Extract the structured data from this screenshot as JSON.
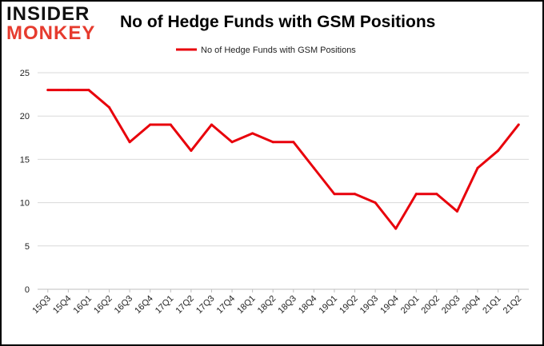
{
  "logo": {
    "line1": "INSIDER",
    "line2": "MONKEY"
  },
  "colors": {
    "series": "#e8000b",
    "grid": "#d9d9d9",
    "logo_accent": "#e63b2e"
  },
  "chart_data": {
    "type": "line",
    "title": "No of Hedge Funds with GSM Positions",
    "legend_position": "top-center",
    "grid": true,
    "ylim": [
      0,
      25
    ],
    "yticks": [
      0,
      5,
      10,
      15,
      20,
      25
    ],
    "x": [
      "15Q3",
      "15Q4",
      "16Q1",
      "16Q2",
      "16Q3",
      "16Q4",
      "17Q1",
      "17Q2",
      "17Q3",
      "17Q4",
      "18Q1",
      "18Q2",
      "18Q3",
      "18Q4",
      "19Q1",
      "19Q2",
      "19Q3",
      "19Q4",
      "20Q1",
      "20Q2",
      "20Q3",
      "20Q4",
      "21Q1",
      "21Q2"
    ],
    "series": [
      {
        "name": "No of Hedge Funds with GSM Positions",
        "color": "#e8000b",
        "values": [
          23,
          23,
          23,
          21,
          17,
          19,
          19,
          16,
          19,
          17,
          18,
          17,
          17,
          14,
          11,
          11,
          10,
          7,
          11,
          11,
          9,
          14,
          16,
          19
        ]
      }
    ]
  }
}
